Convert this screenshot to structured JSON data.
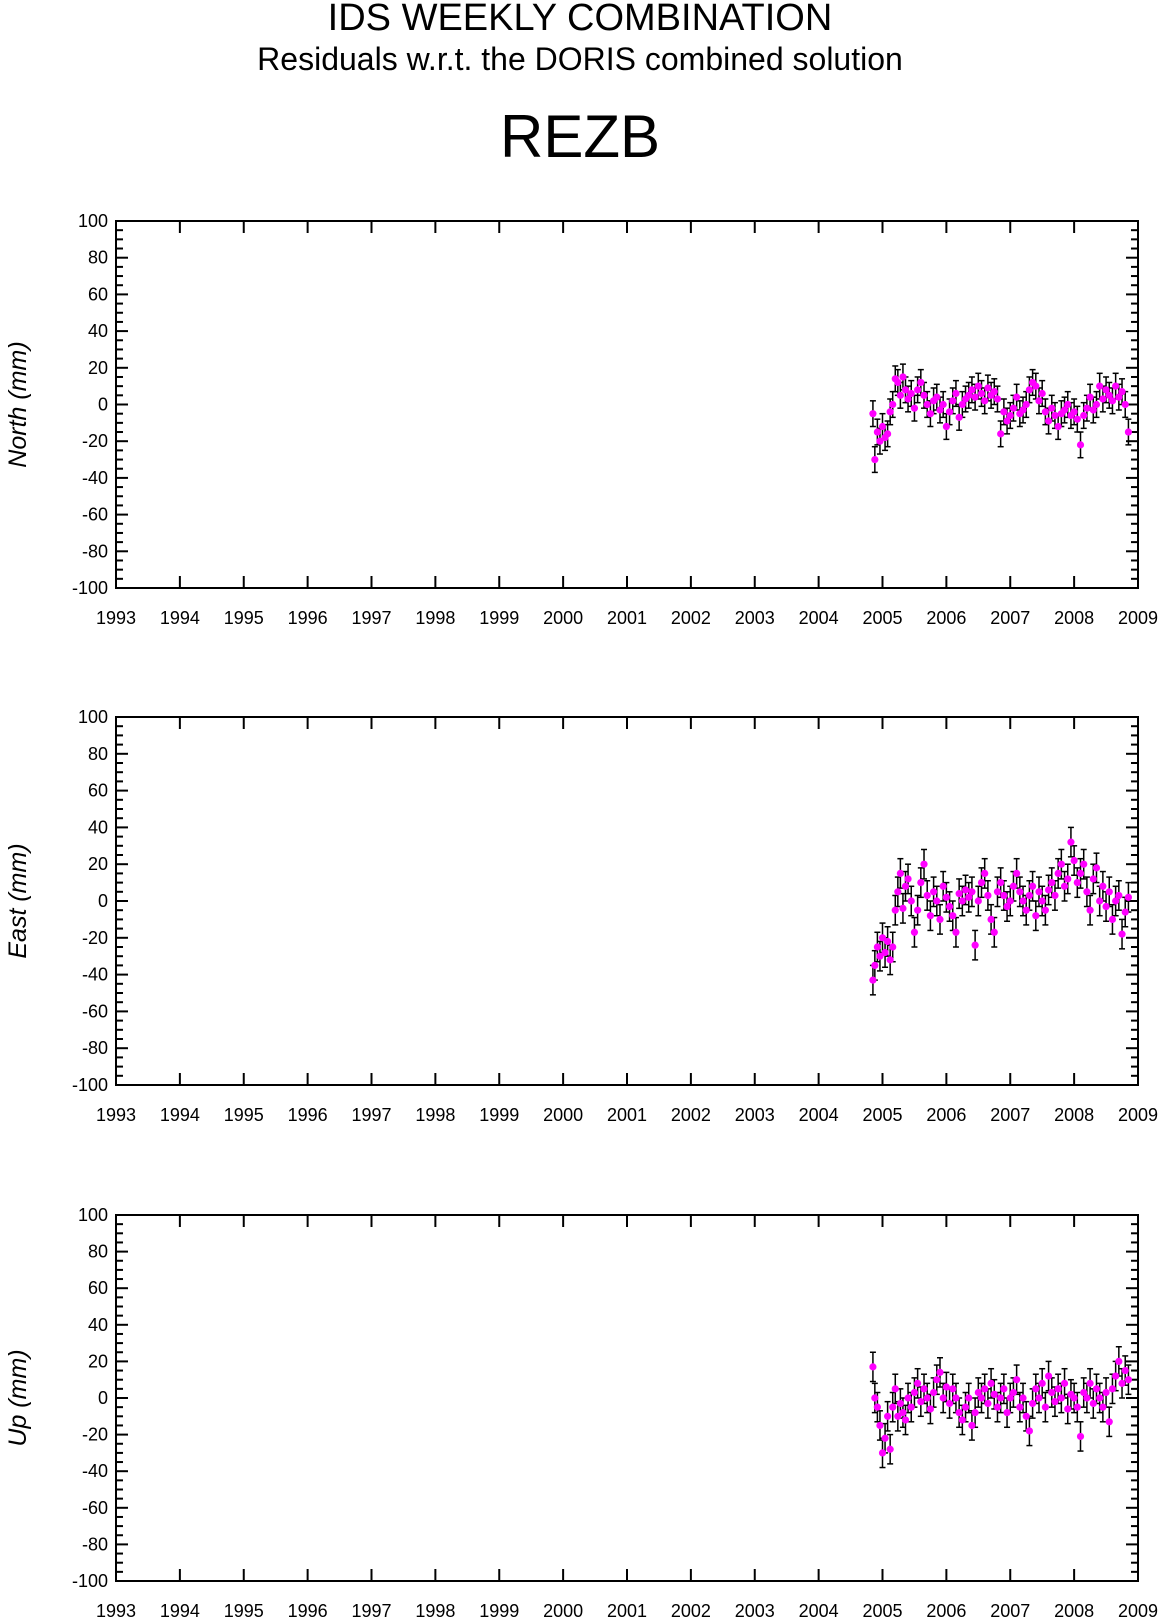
{
  "header": {
    "title": "IDS WEEKLY COMBINATION",
    "subtitle": "Residuals w.r.t. the DORIS combined solution",
    "station": "REZB"
  },
  "style": {
    "point_color": "#ff00ff",
    "errorbar_color": "#000000",
    "axis_color": "#000000"
  },
  "chart_data": [
    {
      "type": "scatter",
      "ylabel": "North (mm)",
      "xlim": [
        1993,
        2009
      ],
      "ylim": [
        -100,
        100
      ],
      "xticks": [
        1993,
        1994,
        1995,
        1996,
        1997,
        1998,
        1999,
        2000,
        2001,
        2002,
        2003,
        2004,
        2005,
        2006,
        2007,
        2008,
        2009
      ],
      "yticks": [
        -100,
        -80,
        -60,
        -40,
        -20,
        0,
        20,
        40,
        60,
        80,
        100
      ],
      "grid": false,
      "data_span": [
        2004.85,
        2008.85
      ],
      "series": [
        {
          "error_bar_mm": 7,
          "points": [
            [
              2004.85,
              -5
            ],
            [
              2004.88,
              -30
            ],
            [
              2004.92,
              -15
            ],
            [
              2004.96,
              -20
            ],
            [
              2005.0,
              -12
            ],
            [
              2005.04,
              -18
            ],
            [
              2005.08,
              -16
            ],
            [
              2005.12,
              -4
            ],
            [
              2005.16,
              0
            ],
            [
              2005.2,
              14
            ],
            [
              2005.24,
              12
            ],
            [
              2005.28,
              5
            ],
            [
              2005.32,
              15
            ],
            [
              2005.36,
              8
            ],
            [
              2005.4,
              3
            ],
            [
              2005.45,
              6
            ],
            [
              2005.5,
              -2
            ],
            [
              2005.55,
              8
            ],
            [
              2005.6,
              12
            ],
            [
              2005.65,
              5
            ],
            [
              2005.7,
              0
            ],
            [
              2005.75,
              -5
            ],
            [
              2005.8,
              2
            ],
            [
              2005.85,
              4
            ],
            [
              2005.9,
              -3
            ],
            [
              2005.95,
              0
            ],
            [
              2006.0,
              -12
            ],
            [
              2006.05,
              -4
            ],
            [
              2006.1,
              2
            ],
            [
              2006.15,
              6
            ],
            [
              2006.2,
              -7
            ],
            [
              2006.25,
              0
            ],
            [
              2006.3,
              3
            ],
            [
              2006.35,
              5
            ],
            [
              2006.4,
              8
            ],
            [
              2006.45,
              4
            ],
            [
              2006.5,
              10
            ],
            [
              2006.55,
              6
            ],
            [
              2006.6,
              2
            ],
            [
              2006.65,
              9
            ],
            [
              2006.7,
              5
            ],
            [
              2006.75,
              7
            ],
            [
              2006.8,
              3
            ],
            [
              2006.85,
              -16
            ],
            [
              2006.9,
              -4
            ],
            [
              2006.95,
              -9
            ],
            [
              2007.0,
              -6
            ],
            [
              2007.05,
              -2
            ],
            [
              2007.1,
              4
            ],
            [
              2007.15,
              -5
            ],
            [
              2007.2,
              -3
            ],
            [
              2007.25,
              0
            ],
            [
              2007.3,
              8
            ],
            [
              2007.35,
              12
            ],
            [
              2007.4,
              10
            ],
            [
              2007.45,
              2
            ],
            [
              2007.5,
              6
            ],
            [
              2007.55,
              -4
            ],
            [
              2007.6,
              -9
            ],
            [
              2007.65,
              -2
            ],
            [
              2007.7,
              -6
            ],
            [
              2007.75,
              -12
            ],
            [
              2007.8,
              -5
            ],
            [
              2007.85,
              -3
            ],
            [
              2007.9,
              0
            ],
            [
              2007.95,
              -6
            ],
            [
              2008.0,
              -4
            ],
            [
              2008.05,
              -8
            ],
            [
              2008.1,
              -22
            ],
            [
              2008.15,
              -6
            ],
            [
              2008.2,
              -2
            ],
            [
              2008.25,
              4
            ],
            [
              2008.3,
              -3
            ],
            [
              2008.35,
              0
            ],
            [
              2008.4,
              10
            ],
            [
              2008.45,
              3
            ],
            [
              2008.5,
              8
            ],
            [
              2008.55,
              5
            ],
            [
              2008.6,
              2
            ],
            [
              2008.65,
              10
            ],
            [
              2008.7,
              4
            ],
            [
              2008.75,
              7
            ],
            [
              2008.8,
              0
            ],
            [
              2008.85,
              -15
            ]
          ]
        }
      ]
    },
    {
      "type": "scatter",
      "ylabel": "East (mm)",
      "xlim": [
        1993,
        2009
      ],
      "ylim": [
        -100,
        100
      ],
      "xticks": [
        1993,
        1994,
        1995,
        1996,
        1997,
        1998,
        1999,
        2000,
        2001,
        2002,
        2003,
        2004,
        2005,
        2006,
        2007,
        2008,
        2009
      ],
      "yticks": [
        -100,
        -80,
        -60,
        -40,
        -20,
        0,
        20,
        40,
        60,
        80,
        100
      ],
      "grid": false,
      "data_span": [
        2004.85,
        2008.85
      ],
      "series": [
        {
          "error_bar_mm": 8,
          "points": [
            [
              2004.85,
              -43
            ],
            [
              2004.88,
              -35
            ],
            [
              2004.92,
              -25
            ],
            [
              2004.96,
              -30
            ],
            [
              2005.0,
              -20
            ],
            [
              2005.04,
              -28
            ],
            [
              2005.08,
              -22
            ],
            [
              2005.12,
              -32
            ],
            [
              2005.16,
              -25
            ],
            [
              2005.2,
              -5
            ],
            [
              2005.24,
              5
            ],
            [
              2005.28,
              15
            ],
            [
              2005.32,
              -4
            ],
            [
              2005.36,
              8
            ],
            [
              2005.4,
              12
            ],
            [
              2005.45,
              0
            ],
            [
              2005.5,
              -17
            ],
            [
              2005.55,
              -5
            ],
            [
              2005.6,
              10
            ],
            [
              2005.65,
              20
            ],
            [
              2005.7,
              3
            ],
            [
              2005.75,
              -8
            ],
            [
              2005.8,
              5
            ],
            [
              2005.85,
              0
            ],
            [
              2005.9,
              -10
            ],
            [
              2005.95,
              8
            ],
            [
              2006.0,
              2
            ],
            [
              2006.05,
              -3
            ],
            [
              2006.1,
              -8
            ],
            [
              2006.15,
              -17
            ],
            [
              2006.2,
              4
            ],
            [
              2006.25,
              0
            ],
            [
              2006.3,
              6
            ],
            [
              2006.35,
              2
            ],
            [
              2006.4,
              5
            ],
            [
              2006.45,
              -24
            ],
            [
              2006.5,
              0
            ],
            [
              2006.55,
              10
            ],
            [
              2006.6,
              15
            ],
            [
              2006.65,
              3
            ],
            [
              2006.7,
              -10
            ],
            [
              2006.75,
              -17
            ],
            [
              2006.8,
              5
            ],
            [
              2006.85,
              10
            ],
            [
              2006.9,
              3
            ],
            [
              2006.95,
              -3
            ],
            [
              2007.0,
              0
            ],
            [
              2007.05,
              8
            ],
            [
              2007.1,
              15
            ],
            [
              2007.15,
              5
            ],
            [
              2007.2,
              0
            ],
            [
              2007.25,
              -5
            ],
            [
              2007.3,
              3
            ],
            [
              2007.35,
              8
            ],
            [
              2007.4,
              -8
            ],
            [
              2007.45,
              5
            ],
            [
              2007.5,
              0
            ],
            [
              2007.55,
              -5
            ],
            [
              2007.6,
              6
            ],
            [
              2007.65,
              10
            ],
            [
              2007.7,
              3
            ],
            [
              2007.75,
              15
            ],
            [
              2007.8,
              20
            ],
            [
              2007.85,
              8
            ],
            [
              2007.9,
              12
            ],
            [
              2007.95,
              32
            ],
            [
              2008.0,
              22
            ],
            [
              2008.05,
              10
            ],
            [
              2008.1,
              15
            ],
            [
              2008.15,
              20
            ],
            [
              2008.2,
              5
            ],
            [
              2008.25,
              -5
            ],
            [
              2008.3,
              12
            ],
            [
              2008.35,
              18
            ],
            [
              2008.4,
              0
            ],
            [
              2008.45,
              8
            ],
            [
              2008.5,
              -3
            ],
            [
              2008.55,
              5
            ],
            [
              2008.6,
              -10
            ],
            [
              2008.65,
              0
            ],
            [
              2008.7,
              3
            ],
            [
              2008.75,
              -18
            ],
            [
              2008.8,
              -6
            ],
            [
              2008.85,
              2
            ]
          ]
        }
      ]
    },
    {
      "type": "scatter",
      "ylabel": "Up (mm)",
      "xlim": [
        1993,
        2009
      ],
      "ylim": [
        -100,
        100
      ],
      "xticks": [
        1993,
        1994,
        1995,
        1996,
        1997,
        1998,
        1999,
        2000,
        2001,
        2002,
        2003,
        2004,
        2005,
        2006,
        2007,
        2008,
        2009
      ],
      "yticks": [
        -100,
        -80,
        -60,
        -40,
        -20,
        0,
        20,
        40,
        60,
        80,
        100
      ],
      "grid": false,
      "data_span": [
        2004.85,
        2008.85
      ],
      "series": [
        {
          "error_bar_mm": 8,
          "points": [
            [
              2004.85,
              17
            ],
            [
              2004.88,
              0
            ],
            [
              2004.92,
              -5
            ],
            [
              2004.96,
              -15
            ],
            [
              2005.0,
              -30
            ],
            [
              2005.04,
              -22
            ],
            [
              2005.08,
              -10
            ],
            [
              2005.12,
              -28
            ],
            [
              2005.16,
              -5
            ],
            [
              2005.2,
              5
            ],
            [
              2005.24,
              -10
            ],
            [
              2005.28,
              -3
            ],
            [
              2005.32,
              -8
            ],
            [
              2005.36,
              -12
            ],
            [
              2005.4,
              0
            ],
            [
              2005.45,
              -5
            ],
            [
              2005.5,
              3
            ],
            [
              2005.55,
              8
            ],
            [
              2005.6,
              -2
            ],
            [
              2005.65,
              5
            ],
            [
              2005.7,
              0
            ],
            [
              2005.75,
              -6
            ],
            [
              2005.8,
              3
            ],
            [
              2005.85,
              10
            ],
            [
              2005.9,
              14
            ],
            [
              2005.95,
              0
            ],
            [
              2006.0,
              6
            ],
            [
              2006.05,
              -3
            ],
            [
              2006.1,
              5
            ],
            [
              2006.15,
              0
            ],
            [
              2006.2,
              -8
            ],
            [
              2006.25,
              -12
            ],
            [
              2006.3,
              -5
            ],
            [
              2006.35,
              0
            ],
            [
              2006.4,
              -15
            ],
            [
              2006.45,
              -8
            ],
            [
              2006.5,
              3
            ],
            [
              2006.55,
              0
            ],
            [
              2006.6,
              5
            ],
            [
              2006.65,
              -3
            ],
            [
              2006.7,
              8
            ],
            [
              2006.75,
              2
            ],
            [
              2006.8,
              -5
            ],
            [
              2006.85,
              0
            ],
            [
              2006.9,
              5
            ],
            [
              2006.95,
              -8
            ],
            [
              2007.0,
              0
            ],
            [
              2007.05,
              3
            ],
            [
              2007.1,
              10
            ],
            [
              2007.15,
              -5
            ],
            [
              2007.2,
              0
            ],
            [
              2007.25,
              -10
            ],
            [
              2007.3,
              -18
            ],
            [
              2007.35,
              -3
            ],
            [
              2007.4,
              5
            ],
            [
              2007.45,
              0
            ],
            [
              2007.5,
              8
            ],
            [
              2007.55,
              -5
            ],
            [
              2007.6,
              12
            ],
            [
              2007.65,
              3
            ],
            [
              2007.7,
              -2
            ],
            [
              2007.75,
              5
            ],
            [
              2007.8,
              0
            ],
            [
              2007.85,
              8
            ],
            [
              2007.9,
              -6
            ],
            [
              2007.95,
              2
            ],
            [
              2008.0,
              0
            ],
            [
              2008.05,
              -5
            ],
            [
              2008.1,
              -21
            ],
            [
              2008.15,
              3
            ],
            [
              2008.2,
              0
            ],
            [
              2008.25,
              8
            ],
            [
              2008.3,
              -3
            ],
            [
              2008.35,
              5
            ],
            [
              2008.4,
              0
            ],
            [
              2008.45,
              -5
            ],
            [
              2008.5,
              3
            ],
            [
              2008.55,
              -13
            ],
            [
              2008.6,
              5
            ],
            [
              2008.65,
              12
            ],
            [
              2008.7,
              20
            ],
            [
              2008.75,
              8
            ],
            [
              2008.8,
              15
            ],
            [
              2008.85,
              10
            ]
          ]
        }
      ]
    }
  ]
}
